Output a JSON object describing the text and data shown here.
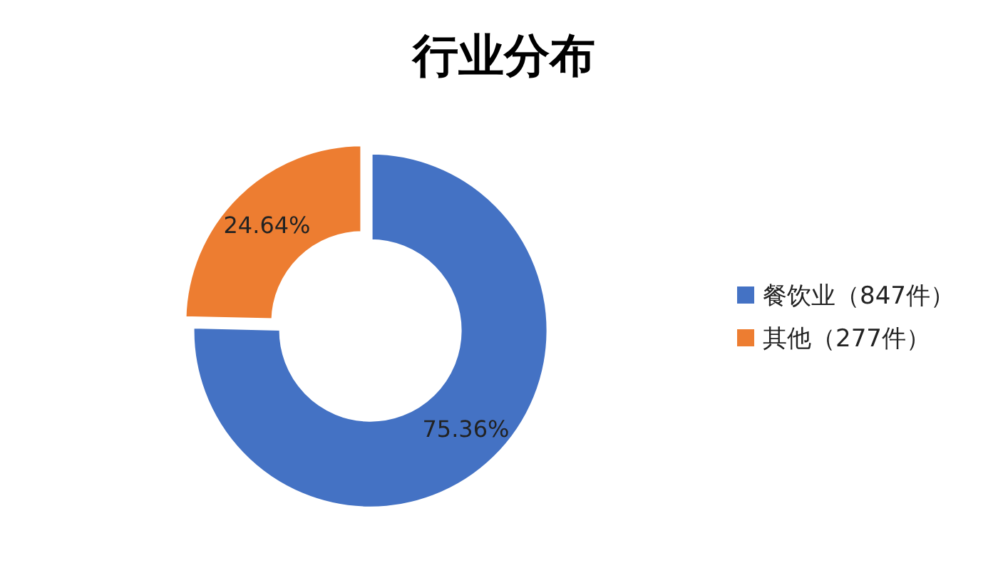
{
  "chart_data": {
    "type": "donut",
    "title": "行业分布",
    "categories": [
      "餐饮业（847件）",
      "其他（277件）"
    ],
    "values": [
      75.36,
      24.64
    ],
    "value_labels": [
      "75.36%",
      "24.64%"
    ],
    "colors": [
      "#4472c4",
      "#ed7d31"
    ],
    "legend": "right"
  }
}
